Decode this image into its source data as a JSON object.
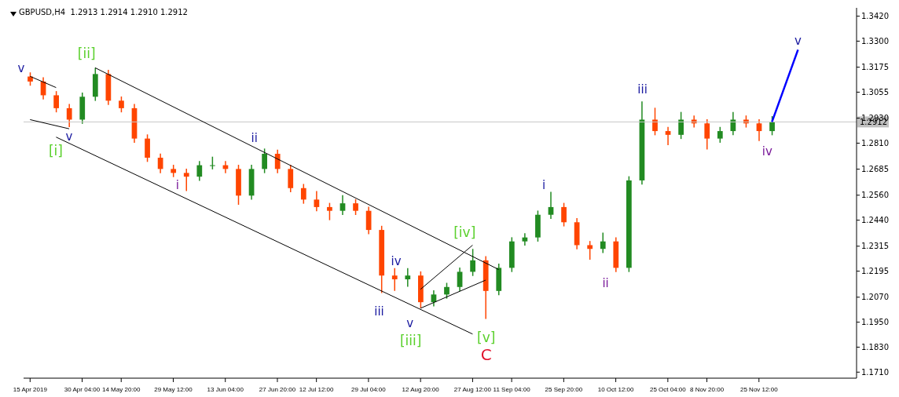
{
  "chart_data": {
    "type": "candlestick",
    "title": "GBPUSD,H4  1.2913 1.2914 1.2910 1.2912",
    "categories": [
      "15 Apr 2019",
      null,
      null,
      null,
      "30 Apr 04:00",
      null,
      null,
      "14 May 20:00",
      null,
      null,
      null,
      "29 May 12:00",
      null,
      null,
      null,
      "13 Jun 04:00",
      null,
      null,
      null,
      "27 Jun 20:00",
      null,
      null,
      "12 Jul 12:00",
      null,
      null,
      null,
      "29 Jul 04:00",
      null,
      null,
      null,
      "12 Aug 20:00",
      null,
      null,
      null,
      "27 Aug 12:00",
      null,
      null,
      "11 Sep 04:00",
      null,
      null,
      null,
      "25 Sep 20:00",
      null,
      null,
      null,
      "10 Oct 12:00",
      null,
      null,
      null,
      "25 Oct 04:00",
      null,
      null,
      "8 Nov 20:00",
      null,
      null,
      null,
      "25 Nov 12:00",
      null,
      null,
      null,
      null,
      null,
      null,
      null
    ],
    "series": [
      {
        "ohlc": [
          [
            1.313,
            1.315,
            1.3086,
            1.3106
          ],
          [
            1.3106,
            1.3126,
            1.302,
            1.304
          ],
          [
            1.304,
            1.306,
            1.2958,
            1.2978
          ],
          [
            1.2978,
            1.2998,
            1.2887,
            1.2923
          ],
          [
            1.2923,
            1.3053,
            1.2903,
            1.3033
          ],
          [
            1.3033,
            1.3172,
            1.3013,
            1.3142
          ],
          [
            1.3142,
            1.3162,
            1.2994,
            1.3014
          ],
          [
            1.3014,
            1.3034,
            1.2958,
            1.2978
          ],
          [
            1.2978,
            1.2998,
            1.2812,
            1.2832
          ],
          [
            1.2832,
            1.2852,
            1.272,
            1.274
          ],
          [
            1.274,
            1.276,
            1.2666,
            1.2686
          ],
          [
            1.2686,
            1.2706,
            1.2647,
            1.2667
          ],
          [
            1.2667,
            1.2687,
            1.258,
            1.2649
          ],
          [
            1.2649,
            1.2724,
            1.2629,
            1.2704
          ],
          [
            1.2704,
            1.2745,
            1.2684,
            1.2704
          ],
          [
            1.2704,
            1.2724,
            1.2666,
            1.2686
          ],
          [
            1.2686,
            1.2706,
            1.2514,
            1.2558
          ],
          [
            1.2558,
            1.2706,
            1.2538,
            1.2686
          ],
          [
            1.2686,
            1.2784,
            1.2666,
            1.2759
          ],
          [
            1.2759,
            1.2779,
            1.2666,
            1.2686
          ],
          [
            1.2686,
            1.2706,
            1.2574,
            1.2594
          ],
          [
            1.2594,
            1.2614,
            1.2519,
            1.2539
          ],
          [
            1.2539,
            1.258,
            1.2483,
            1.2503
          ],
          [
            1.2503,
            1.2523,
            1.244,
            1.2485
          ],
          [
            1.2485,
            1.256,
            1.2465,
            1.2521
          ],
          [
            1.2521,
            1.2541,
            1.2465,
            1.2485
          ],
          [
            1.2485,
            1.2505,
            1.2373,
            1.2393
          ],
          [
            1.2393,
            1.2413,
            1.209,
            1.2174
          ],
          [
            1.2174,
            1.221,
            1.21,
            1.2156
          ],
          [
            1.2156,
            1.221,
            1.212,
            1.2174
          ],
          [
            1.2174,
            1.2194,
            1.2017,
            1.2046
          ],
          [
            1.2046,
            1.2103,
            1.2026,
            1.2083
          ],
          [
            1.2083,
            1.2139,
            1.2063,
            1.2119
          ],
          [
            1.2119,
            1.2212,
            1.2099,
            1.2192
          ],
          [
            1.2192,
            1.2302,
            1.2172,
            1.2247
          ],
          [
            1.2247,
            1.2267,
            1.1966,
            1.21
          ],
          [
            1.21,
            1.2231,
            1.208,
            1.2211
          ],
          [
            1.2211,
            1.2358,
            1.2191,
            1.2338
          ],
          [
            1.2338,
            1.2377,
            1.2318,
            1.2357
          ],
          [
            1.2357,
            1.2486,
            1.2337,
            1.2466
          ],
          [
            1.2466,
            1.2576,
            1.2446,
            1.2503
          ],
          [
            1.2503,
            1.2523,
            1.241,
            1.243
          ],
          [
            1.243,
            1.245,
            1.23,
            1.232
          ],
          [
            1.232,
            1.234,
            1.225,
            1.2302
          ],
          [
            1.2302,
            1.238,
            1.2282,
            1.2338
          ],
          [
            1.2338,
            1.2358,
            1.2191,
            1.2211
          ],
          [
            1.2211,
            1.2651,
            1.2191,
            1.2631
          ],
          [
            1.2631,
            1.3011,
            1.2611,
            1.2923
          ],
          [
            1.2923,
            1.298,
            1.2848,
            1.2868
          ],
          [
            1.2868,
            1.2888,
            1.28,
            1.285
          ],
          [
            1.285,
            1.296,
            1.283,
            1.2923
          ],
          [
            1.2923,
            1.2943,
            1.2885,
            1.2905
          ],
          [
            1.2905,
            1.2925,
            1.278,
            1.2832
          ],
          [
            1.2832,
            1.2888,
            1.2812,
            1.2868
          ],
          [
            1.2868,
            1.296,
            1.2848,
            1.2923
          ],
          [
            1.2923,
            1.2943,
            1.2885,
            1.2905
          ],
          [
            1.2905,
            1.2925,
            1.282,
            1.2868
          ],
          [
            1.2868,
            1.294,
            1.2848,
            1.2912
          ],
          null,
          null,
          null,
          null,
          null,
          null
        ],
        "colors": [
          "#ff4500",
          "#ff4500",
          "#ff4500",
          "#ff4500",
          "#228b22",
          "#228b22",
          "#ff4500",
          "#ff4500",
          "#ff4500",
          "#ff4500",
          "#ff4500",
          "#ff4500",
          "#ff4500",
          "#228b22",
          "#228b22",
          "#ff4500",
          "#ff4500",
          "#228b22",
          "#228b22",
          "#ff4500",
          "#ff4500",
          "#ff4500",
          "#ff4500",
          "#ff4500",
          "#228b22",
          "#ff4500",
          "#ff4500",
          "#ff4500",
          "#ff4500",
          "#228b22",
          "#ff4500",
          "#228b22",
          "#228b22",
          "#228b22",
          "#228b22",
          "#ff4500",
          "#228b22",
          "#228b22",
          "#228b22",
          "#228b22",
          "#228b22",
          "#ff4500",
          "#ff4500",
          "#ff4500",
          "#228b22",
          "#ff4500",
          "#228b22",
          "#228b22",
          "#ff4500",
          "#ff4500",
          "#228b22",
          "#ff4500",
          "#ff4500",
          "#228b22",
          "#228b22",
          "#ff4500",
          "#ff4500",
          "#228b22",
          null,
          null,
          null,
          null,
          null,
          null
        ]
      },
      {
        "type": "line",
        "color": "#0000ff",
        "values": [
          null,
          null,
          null,
          null,
          null,
          null,
          null,
          null,
          null,
          null,
          null,
          null,
          null,
          null,
          null,
          null,
          null,
          null,
          null,
          null,
          null,
          null,
          null,
          null,
          null,
          null,
          null,
          null,
          null,
          null,
          null,
          null,
          null,
          null,
          null,
          null,
          null,
          null,
          null,
          null,
          null,
          null,
          null,
          null,
          null,
          null,
          null,
          null,
          null,
          null,
          null,
          null,
          null,
          null,
          null,
          null,
          null,
          1.2912,
          null,
          1.3259,
          null,
          null,
          null,
          null
        ]
      },
      {
        "type": "line",
        "color": "#000000",
        "values": [
          null,
          null,
          null,
          null,
          null,
          1.3172,
          null,
          null,
          null,
          null,
          null,
          null,
          null,
          null,
          null,
          null,
          null,
          null,
          null,
          null,
          null,
          null,
          null,
          null,
          null,
          null,
          null,
          null,
          null,
          null,
          null,
          null,
          null,
          null,
          null,
          null,
          1.2203,
          null,
          null,
          null,
          null,
          null,
          null,
          null,
          null,
          null,
          null,
          null,
          null,
          null,
          null,
          null,
          null,
          null,
          null,
          null,
          null,
          null,
          null,
          null,
          null,
          null,
          null,
          null
        ]
      },
      {
        "type": "line",
        "color": "#000000",
        "values": [
          null,
          null,
          1.2839,
          null,
          null,
          null,
          null,
          null,
          null,
          null,
          null,
          null,
          null,
          null,
          null,
          null,
          null,
          null,
          null,
          null,
          null,
          null,
          null,
          null,
          null,
          null,
          null,
          null,
          null,
          null,
          null,
          null,
          null,
          null,
          1.1893,
          null,
          null,
          null,
          null,
          null,
          null,
          null,
          null,
          null,
          null,
          null,
          null,
          null,
          null,
          null,
          null,
          null,
          null,
          null,
          null,
          null,
          null,
          null,
          null,
          null,
          null,
          null,
          null,
          null
        ]
      },
      {
        "type": "line",
        "color": "#000000",
        "values": [
          null,
          null,
          null,
          null,
          null,
          null,
          null,
          null,
          null,
          null,
          null,
          null,
          null,
          null,
          null,
          null,
          null,
          null,
          null,
          null,
          null,
          null,
          null,
          null,
          null,
          null,
          null,
          null,
          null,
          null,
          1.2108,
          null,
          null,
          null,
          1.232,
          null,
          null,
          null,
          null,
          null,
          null,
          null,
          null,
          null,
          null,
          null,
          null,
          null,
          null,
          null,
          null,
          null,
          null,
          null,
          null,
          null,
          null,
          null,
          null,
          null,
          null,
          null,
          null,
          null
        ]
      },
      {
        "type": "line",
        "color": "#000000",
        "values": [
          null,
          null,
          null,
          null,
          null,
          null,
          null,
          null,
          null,
          null,
          null,
          null,
          null,
          null,
          null,
          null,
          null,
          null,
          null,
          null,
          null,
          null,
          null,
          null,
          null,
          null,
          null,
          null,
          null,
          null,
          1.2017,
          null,
          null,
          null,
          null,
          1.2152,
          null,
          null,
          null,
          null,
          null,
          null,
          null,
          null,
          null,
          null,
          null,
          null,
          null,
          null,
          null,
          null,
          null,
          null,
          null,
          null,
          null,
          null,
          null,
          null,
          null,
          null,
          null,
          null
        ]
      },
      {
        "type": "line",
        "color": "#000000",
        "values": [
          1.3131,
          null,
          1.3077,
          null,
          null,
          null,
          null,
          null,
          null,
          null,
          null,
          null,
          null,
          null,
          null,
          null,
          null,
          null,
          null,
          null,
          null,
          null,
          null,
          null,
          null,
          null,
          null,
          null,
          null,
          null,
          null,
          null,
          null,
          null,
          null,
          null,
          null,
          null,
          null,
          null,
          null,
          null,
          null,
          null,
          null,
          null,
          null,
          null,
          null,
          null,
          null,
          null,
          null,
          null,
          null,
          null,
          null,
          null,
          null,
          null,
          null,
          null,
          null,
          null
        ]
      },
      {
        "type": "line",
        "color": "#000000",
        "values": [
          1.2923,
          null,
          null,
          1.2879,
          null,
          null,
          null,
          null,
          null,
          null,
          null,
          null,
          null,
          null,
          null,
          null,
          null,
          null,
          null,
          null,
          null,
          null,
          null,
          null,
          null,
          null,
          null,
          null,
          null,
          null,
          null,
          null,
          null,
          null,
          null,
          null,
          null,
          null,
          null,
          null,
          null,
          null,
          null,
          null,
          null,
          null,
          null,
          null,
          null,
          null,
          null,
          null,
          null,
          null,
          null,
          null,
          null,
          null,
          null,
          null,
          null,
          null,
          null,
          null
        ]
      }
    ],
    "ylim": [
      1.1681,
      1.346
    ],
    "yticks": [
      {
        "value": 1.171,
        "label": "1.1710"
      },
      {
        "value": 1.183,
        "label": "1.1830"
      },
      {
        "value": 1.195,
        "label": "1.1950"
      },
      {
        "value": 1.207,
        "label": "1.2070"
      },
      {
        "value": 1.2195,
        "label": "1.2195"
      },
      {
        "value": 1.2315,
        "label": "1.2315"
      },
      {
        "value": 1.244,
        "label": "1.2440"
      },
      {
        "value": 1.256,
        "label": "1.2560"
      },
      {
        "value": 1.2685,
        "label": "1.2685"
      },
      {
        "value": 1.281,
        "label": "1.2810"
      },
      {
        "value": 1.293,
        "label": "1.2930"
      },
      {
        "value": 1.3055,
        "label": "1.3055"
      },
      {
        "value": 1.3175,
        "label": "1.3175"
      },
      {
        "value": 1.33,
        "label": "1.3300"
      },
      {
        "value": 1.342,
        "label": "1.3420"
      }
    ],
    "ref_lines": [
      {
        "axis": "y",
        "value": 1.2912,
        "label": "1.2912",
        "color": "#c8c8c8"
      }
    ],
    "annotations": [
      "v",
      "[ii]",
      {
        "text": "v",
        "y": 1.2887
      },
      "[i]",
      "ii",
      "i",
      "iv",
      "iii",
      "v",
      "[iii]",
      "[iv]",
      "[v]",
      "C",
      "i",
      "ii",
      "iii",
      "iv",
      {
        "text": "v",
        "y": 1.3259
      }
    ],
    "grid": false,
    "legend": false
  }
}
